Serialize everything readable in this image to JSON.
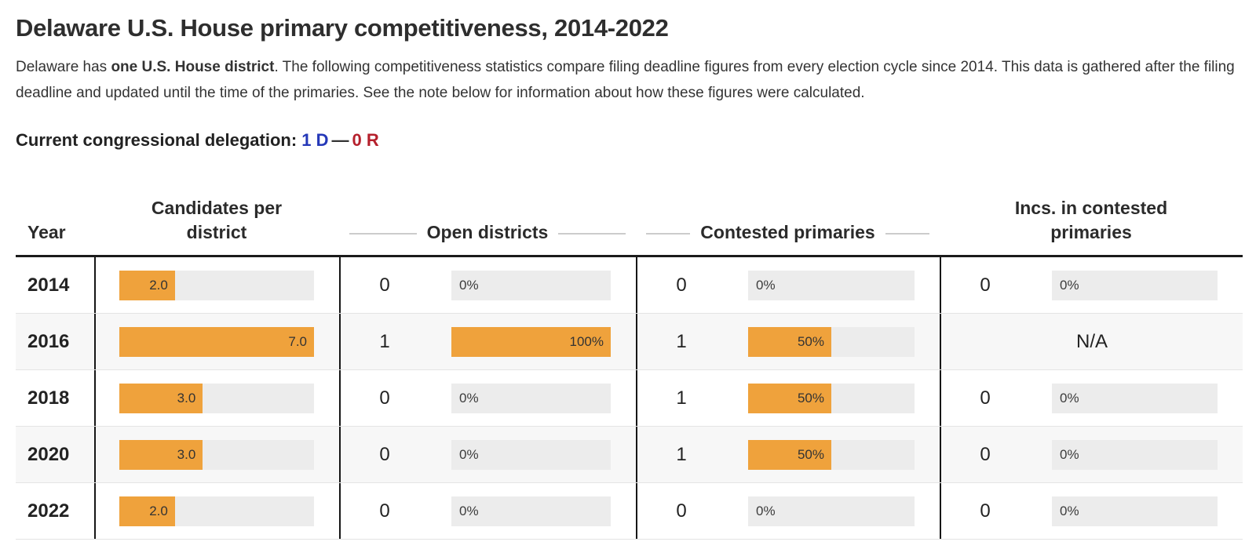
{
  "page": {
    "title": "Delaware U.S. House primary competitiveness, 2014-2022",
    "intro": {
      "pre_bold": "Delaware has ",
      "bold": "one U.S. House district",
      "post_bold": ". The following competitiveness statistics compare filing deadline figures from every election cycle since 2014. This data is gathered after the filing deadline and updated until the time of the primaries. See the note below for information about how these figures were calculated."
    },
    "delegation": {
      "label": "Current congressional delegation:",
      "dem": "1 D",
      "separator": "—",
      "rep": "0 R",
      "dem_color": "#2438b8",
      "rep_color": "#b5202c"
    }
  },
  "colors": {
    "bar_fill": "#efa23c",
    "bar_track": "#ececec",
    "row_stripe": "#f7f7f7",
    "divider": "#161616",
    "header_rule": "#1b1b1b",
    "header_line": "#cccccc"
  },
  "table": {
    "headers": [
      "Year",
      "Candidates per district",
      "Open districts",
      "Contested primaries",
      "Incs. in contested primaries"
    ],
    "candidates_max": 7.0,
    "rows": [
      {
        "year": "2014",
        "candidates": {
          "value": 2.0,
          "label": "2.0"
        },
        "open": {
          "count": "0",
          "pct": 0,
          "label": "0%"
        },
        "contested": {
          "count": "0",
          "pct": 0,
          "label": "0%"
        },
        "incs": {
          "count": "0",
          "pct": 0,
          "label": "0%"
        }
      },
      {
        "year": "2016",
        "candidates": {
          "value": 7.0,
          "label": "7.0"
        },
        "open": {
          "count": "1",
          "pct": 100,
          "label": "100%"
        },
        "contested": {
          "count": "1",
          "pct": 50,
          "label": "50%"
        },
        "incs": {
          "na": true,
          "label": "N/A"
        }
      },
      {
        "year": "2018",
        "candidates": {
          "value": 3.0,
          "label": "3.0"
        },
        "open": {
          "count": "0",
          "pct": 0,
          "label": "0%"
        },
        "contested": {
          "count": "1",
          "pct": 50,
          "label": "50%"
        },
        "incs": {
          "count": "0",
          "pct": 0,
          "label": "0%"
        }
      },
      {
        "year": "2020",
        "candidates": {
          "value": 3.0,
          "label": "3.0"
        },
        "open": {
          "count": "0",
          "pct": 0,
          "label": "0%"
        },
        "contested": {
          "count": "1",
          "pct": 50,
          "label": "50%"
        },
        "incs": {
          "count": "0",
          "pct": 0,
          "label": "0%"
        }
      },
      {
        "year": "2022",
        "candidates": {
          "value": 2.0,
          "label": "2.0"
        },
        "open": {
          "count": "0",
          "pct": 0,
          "label": "0%"
        },
        "contested": {
          "count": "0",
          "pct": 0,
          "label": "0%"
        },
        "incs": {
          "count": "0",
          "pct": 0,
          "label": "0%"
        }
      }
    ]
  },
  "chart_data": {
    "type": "table",
    "title": "Delaware U.S. House primary competitiveness, 2014-2022",
    "columns": [
      "Year",
      "Candidates per district",
      "Open districts (count)",
      "Open districts (%)",
      "Contested primaries (count)",
      "Contested primaries (%)",
      "Incs. in contested primaries (count)",
      "Incs. in contested primaries (%)"
    ],
    "rows": [
      [
        "2014",
        2.0,
        0,
        "0%",
        0,
        "0%",
        0,
        "0%"
      ],
      [
        "2016",
        7.0,
        1,
        "100%",
        1,
        "50%",
        null,
        "N/A"
      ],
      [
        "2018",
        3.0,
        0,
        "0%",
        1,
        "50%",
        0,
        "0%"
      ],
      [
        "2020",
        3.0,
        0,
        "0%",
        1,
        "50%",
        0,
        "0%"
      ],
      [
        "2022",
        2.0,
        0,
        "0%",
        0,
        "0%",
        0,
        "0%"
      ]
    ],
    "bar_scale": {
      "candidates_max": 7.0,
      "percent_max": 100
    },
    "bar_color": "#efa23c",
    "track_color": "#ececec",
    "legend_position": "none",
    "grid": false
  }
}
